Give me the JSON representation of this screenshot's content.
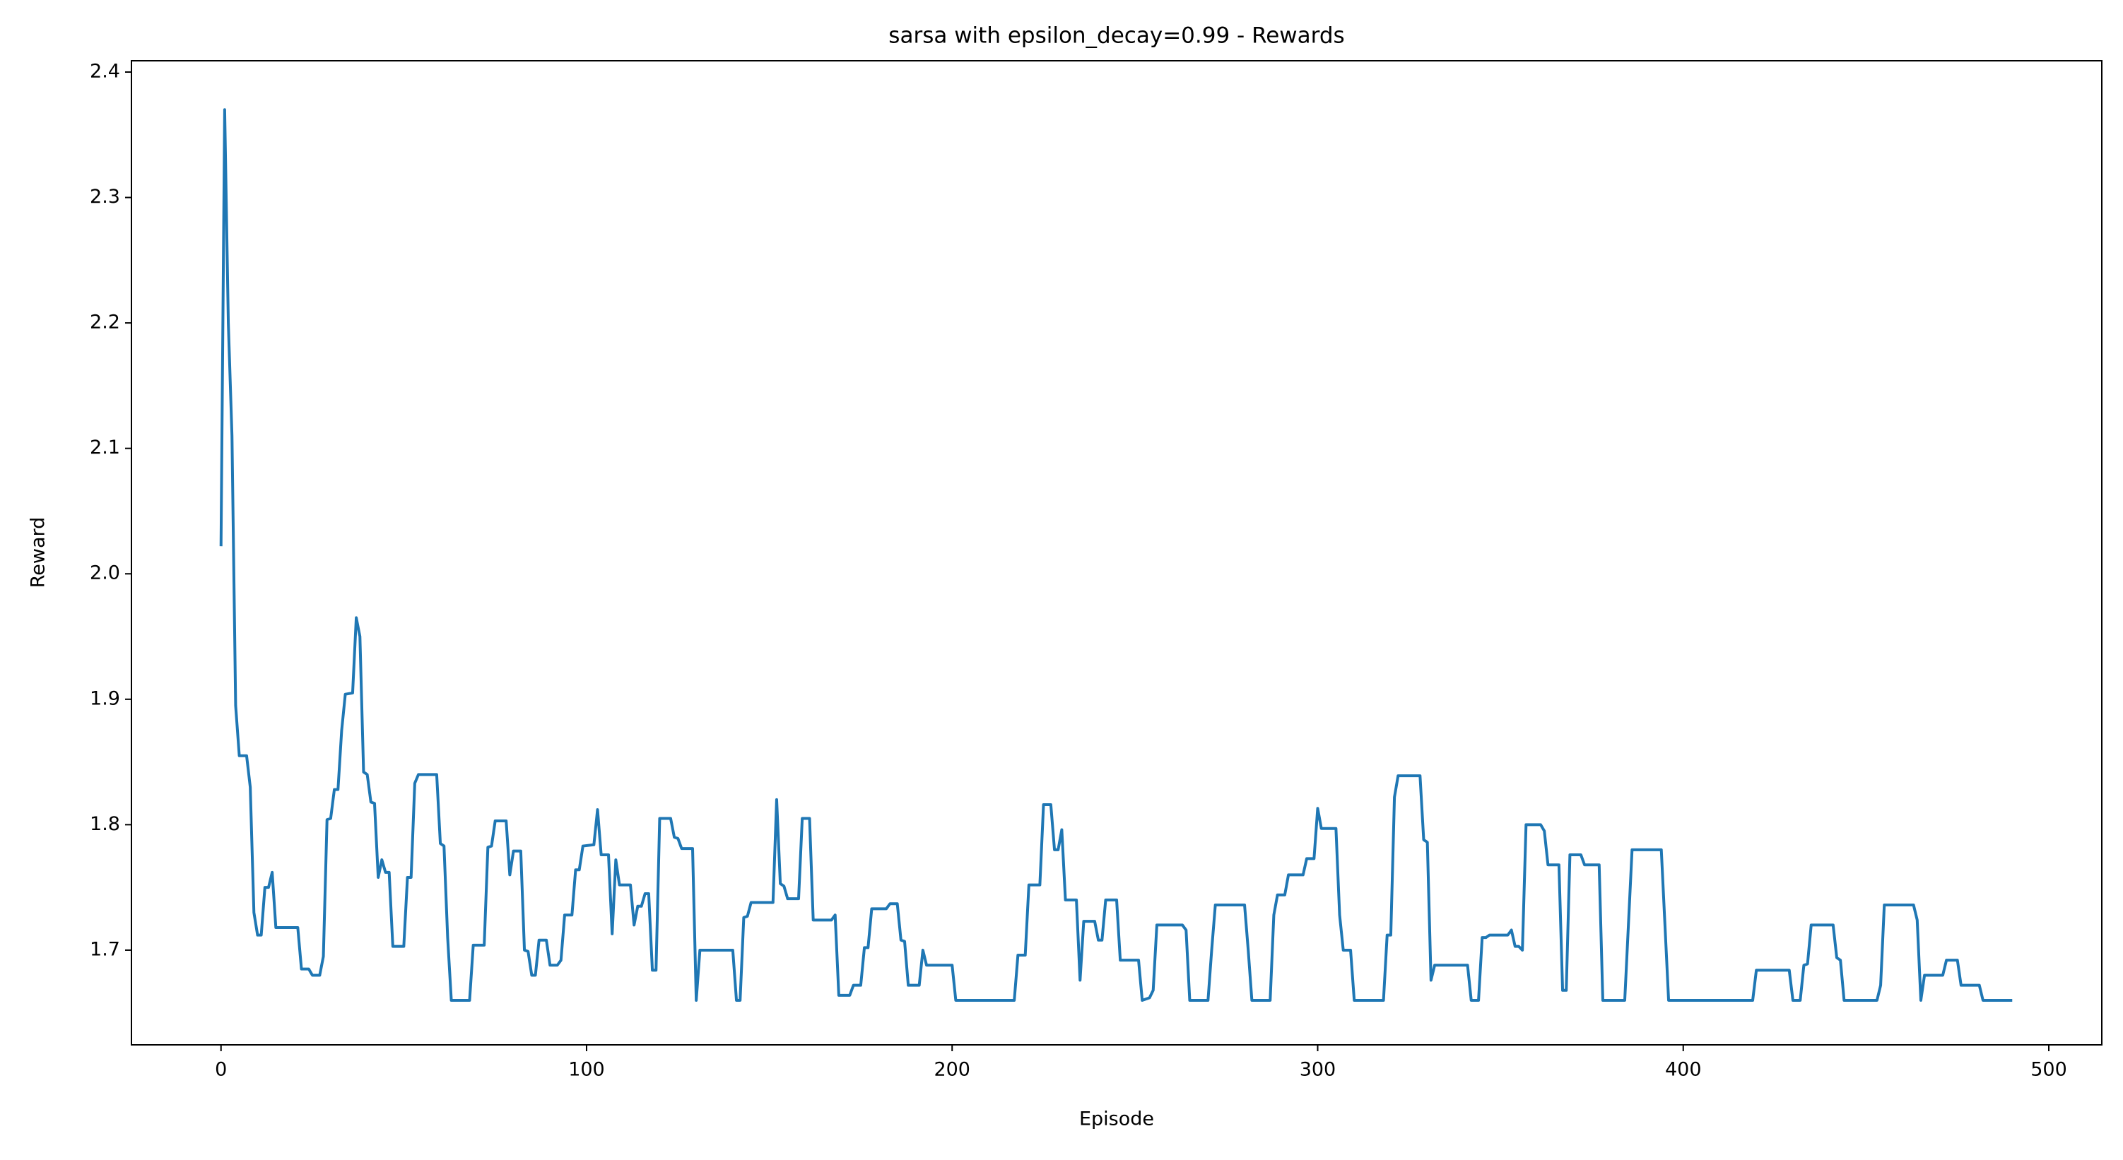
{
  "chart_data": {
    "type": "line",
    "title": "sarsa with epsilon_decay=0.99 - Rewards",
    "x_label": "Episode",
    "y_label": "Reward",
    "color": "#1f77b4",
    "x": [
      0,
      1,
      2,
      3,
      4,
      5,
      7,
      8,
      9,
      10,
      11,
      12,
      13,
      14,
      15,
      21,
      22,
      24,
      25,
      27,
      28,
      29,
      30,
      31,
      32,
      33,
      34,
      36,
      37,
      38,
      39,
      40,
      41,
      42,
      43,
      44,
      45,
      46,
      47,
      50,
      51,
      52,
      53,
      54,
      59,
      60,
      61,
      62,
      63,
      68,
      69,
      72,
      73,
      74,
      75,
      78,
      79,
      80,
      82,
      83,
      84,
      85,
      86,
      87,
      89,
      90,
      92,
      93,
      94,
      96,
      97,
      98,
      99,
      102,
      103,
      104,
      106,
      107,
      108,
      109,
      112,
      113,
      114,
      115,
      116,
      117,
      118,
      119,
      120,
      123,
      124,
      125,
      126,
      129,
      130,
      131,
      140,
      141,
      142,
      143,
      144,
      145,
      151,
      152,
      153,
      154,
      155,
      158,
      159,
      161,
      162,
      167,
      168,
      169,
      172,
      173,
      175,
      176,
      177,
      178,
      182,
      183,
      185,
      186,
      187,
      188,
      191,
      192,
      193,
      200,
      201,
      217,
      218,
      220,
      221,
      224,
      225,
      227,
      228,
      229,
      230,
      231,
      234,
      235,
      236,
      239,
      240,
      241,
      242,
      245,
      246,
      251,
      252,
      254,
      255,
      256,
      263,
      264,
      265,
      270,
      271,
      272,
      280,
      281,
      282,
      287,
      288,
      289,
      291,
      292,
      296,
      297,
      299,
      300,
      301,
      305,
      306,
      307,
      309,
      310,
      318,
      319,
      320,
      321,
      322,
      328,
      329,
      330,
      331,
      332,
      341,
      342,
      344,
      345,
      346,
      347,
      352,
      353,
      354,
      355,
      356,
      357,
      361,
      362,
      363,
      366,
      367,
      368,
      369,
      372,
      373,
      377,
      378,
      384,
      385,
      386,
      394,
      395,
      396,
      419,
      420,
      429,
      430,
      432,
      433,
      434,
      435,
      441,
      442,
      443,
      444,
      453,
      454,
      455,
      463,
      464,
      465,
      466,
      471,
      472,
      475,
      476,
      481,
      482,
      490
    ],
    "values": [
      2.022,
      2.37,
      2.2,
      2.11,
      1.895,
      1.855,
      1.855,
      1.83,
      1.73,
      1.712,
      1.712,
      1.75,
      1.75,
      1.762,
      1.718,
      1.718,
      1.685,
      1.685,
      1.68,
      1.68,
      1.695,
      1.804,
      1.805,
      1.828,
      1.828,
      1.875,
      1.904,
      1.905,
      1.965,
      1.95,
      1.842,
      1.84,
      1.818,
      1.817,
      1.758,
      1.772,
      1.762,
      1.762,
      1.703,
      1.703,
      1.758,
      1.758,
      1.833,
      1.84,
      1.84,
      1.785,
      1.783,
      1.71,
      1.66,
      1.66,
      1.704,
      1.704,
      1.782,
      1.783,
      1.803,
      1.803,
      1.76,
      1.779,
      1.779,
      1.7,
      1.699,
      1.68,
      1.68,
      1.708,
      1.708,
      1.688,
      1.688,
      1.692,
      1.728,
      1.728,
      1.764,
      1.764,
      1.783,
      1.784,
      1.812,
      1.776,
      1.776,
      1.713,
      1.772,
      1.752,
      1.752,
      1.72,
      1.735,
      1.735,
      1.745,
      1.745,
      1.684,
      1.684,
      1.805,
      1.805,
      1.79,
      1.789,
      1.781,
      1.781,
      1.66,
      1.7,
      1.7,
      1.66,
      1.66,
      1.726,
      1.727,
      1.738,
      1.738,
      1.82,
      1.753,
      1.751,
      1.741,
      1.741,
      1.805,
      1.805,
      1.724,
      1.724,
      1.728,
      1.664,
      1.664,
      1.672,
      1.672,
      1.702,
      1.702,
      1.733,
      1.733,
      1.737,
      1.737,
      1.708,
      1.707,
      1.672,
      1.672,
      1.7,
      1.688,
      1.688,
      1.66,
      1.66,
      1.696,
      1.696,
      1.752,
      1.752,
      1.816,
      1.816,
      1.78,
      1.78,
      1.796,
      1.74,
      1.74,
      1.676,
      1.723,
      1.723,
      1.708,
      1.708,
      1.74,
      1.74,
      1.692,
      1.692,
      1.66,
      1.662,
      1.668,
      1.72,
      1.72,
      1.716,
      1.66,
      1.66,
      1.7,
      1.736,
      1.736,
      1.7,
      1.66,
      1.66,
      1.728,
      1.744,
      1.744,
      1.76,
      1.76,
      1.773,
      1.773,
      1.813,
      1.797,
      1.797,
      1.728,
      1.7,
      1.7,
      1.66,
      1.66,
      1.712,
      1.712,
      1.822,
      1.839,
      1.839,
      1.788,
      1.786,
      1.676,
      1.688,
      1.688,
      1.66,
      1.66,
      1.71,
      1.71,
      1.712,
      1.712,
      1.716,
      1.703,
      1.703,
      1.7,
      1.8,
      1.8,
      1.795,
      1.768,
      1.768,
      1.668,
      1.668,
      1.776,
      1.776,
      1.768,
      1.768,
      1.66,
      1.66,
      1.72,
      1.78,
      1.78,
      1.72,
      1.66,
      1.66,
      1.684,
      1.684,
      1.66,
      1.66,
      1.688,
      1.689,
      1.72,
      1.72,
      1.694,
      1.692,
      1.66,
      1.66,
      1.672,
      1.736,
      1.736,
      1.724,
      1.66,
      1.68,
      1.68,
      1.692,
      1.692,
      1.672,
      1.672,
      1.66,
      1.66
    ],
    "xlim": [
      -24.5,
      514.5
    ],
    "xticks": [
      0,
      100,
      200,
      300,
      400,
      500
    ],
    "ylim": [
      1.6245,
      2.409
    ],
    "yticks": [
      1.7,
      1.8,
      1.9,
      {
        "value": 2,
        "label": "2.0"
      },
      2.1,
      2.2,
      2.3,
      2.4
    ],
    "grid": false
  }
}
